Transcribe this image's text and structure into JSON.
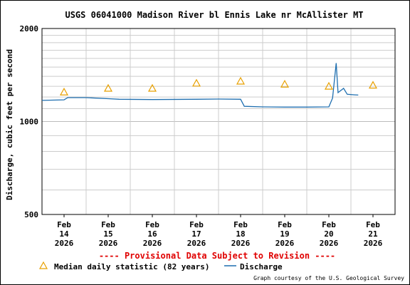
{
  "chart_data": {
    "type": "line",
    "title": "USGS 06041000 Madison River bl Ennis Lake nr McAllister MT",
    "ylabel": "Discharge, cubic feet per second",
    "y_scale": "log",
    "ylim": [
      500,
      2000
    ],
    "y_ticks": [
      "500",
      "1000",
      "2000"
    ],
    "xlim": [
      "2026-02-14",
      "2026-02-22"
    ],
    "x_ticks": [
      {
        "month": "Feb",
        "day": "14",
        "year": "2026"
      },
      {
        "month": "Feb",
        "day": "15",
        "year": "2026"
      },
      {
        "month": "Feb",
        "day": "16",
        "year": "2026"
      },
      {
        "month": "Feb",
        "day": "17",
        "year": "2026"
      },
      {
        "month": "Feb",
        "day": "18",
        "year": "2026"
      },
      {
        "month": "Feb",
        "day": "19",
        "year": "2026"
      },
      {
        "month": "Feb",
        "day": "20",
        "year": "2026"
      },
      {
        "month": "Feb",
        "day": "21",
        "year": "2026"
      }
    ],
    "grid": true,
    "series": [
      {
        "name": "Discharge",
        "color": "#1f6fb0",
        "points": [
          [
            "2026-02-13T12:00",
            1170
          ],
          [
            "2026-02-14T00:00",
            1175
          ],
          [
            "2026-02-14T02:00",
            1195
          ],
          [
            "2026-02-14T12:00",
            1195
          ],
          [
            "2026-02-15T00:00",
            1185
          ],
          [
            "2026-02-15T06:00",
            1180
          ],
          [
            "2026-02-16T00:00",
            1178
          ],
          [
            "2026-02-17T00:00",
            1180
          ],
          [
            "2026-02-17T12:00",
            1182
          ],
          [
            "2026-02-18T00:00",
            1180
          ],
          [
            "2026-02-18T02:00",
            1120
          ],
          [
            "2026-02-18T12:00",
            1115
          ],
          [
            "2026-02-19T00:00",
            1113
          ],
          [
            "2026-02-19T12:00",
            1113
          ],
          [
            "2026-02-20T00:00",
            1115
          ],
          [
            "2026-02-20T02:00",
            1190
          ],
          [
            "2026-02-20T04:00",
            1545
          ],
          [
            "2026-02-20T05:00",
            1240
          ],
          [
            "2026-02-20T08:00",
            1280
          ],
          [
            "2026-02-20T10:00",
            1225
          ],
          [
            "2026-02-20T14:00",
            1220
          ],
          [
            "2026-02-20T16:00",
            1218
          ]
        ]
      },
      {
        "name": "Median daily statistic (82 years)",
        "marker": "triangle",
        "color": "#e8a000",
        "points": [
          [
            "2026-02-14",
            1245
          ],
          [
            "2026-02-15",
            1280
          ],
          [
            "2026-02-16",
            1280
          ],
          [
            "2026-02-17",
            1330
          ],
          [
            "2026-02-18",
            1350
          ],
          [
            "2026-02-19",
            1320
          ],
          [
            "2026-02-20",
            1300
          ],
          [
            "2026-02-21",
            1310
          ]
        ]
      }
    ],
    "legend_position": "bottom",
    "annotation": "---- Provisional Data Subject to Revision ----",
    "credit": "Graph courtesy of the U.S. Geological Survey"
  }
}
